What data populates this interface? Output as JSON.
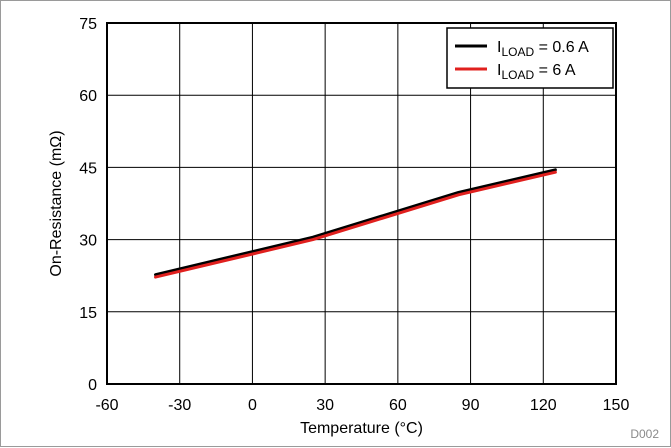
{
  "chart_data": {
    "type": "line",
    "xlabel": "Temperature (°C)",
    "ylabel": "On-Resistance (mΩ)",
    "xlim": [
      -60,
      150
    ],
    "ylim": [
      0,
      75
    ],
    "xticks": [
      -60,
      -30,
      0,
      30,
      60,
      90,
      120,
      150
    ],
    "yticks": [
      0,
      15,
      30,
      45,
      60,
      75
    ],
    "grid": true,
    "legend_position": "top-right",
    "series": [
      {
        "name": "ILOAD = 0.6 A",
        "name_parts": {
          "base": "I",
          "sub": "LOAD",
          "rest": " = 0.6 A"
        },
        "color": "#000000",
        "x": [
          -40,
          25,
          85,
          125
        ],
        "y": [
          22.7,
          30.5,
          39.8,
          44.5
        ]
      },
      {
        "name": "ILOAD = 6 A",
        "name_parts": {
          "base": "I",
          "sub": "LOAD",
          "rest": " = 6 A"
        },
        "color": "#e0201e",
        "x": [
          -40,
          25,
          85,
          125
        ],
        "y": [
          22.2,
          30.0,
          39.3,
          44.0
        ]
      }
    ],
    "annotation": "D002"
  }
}
